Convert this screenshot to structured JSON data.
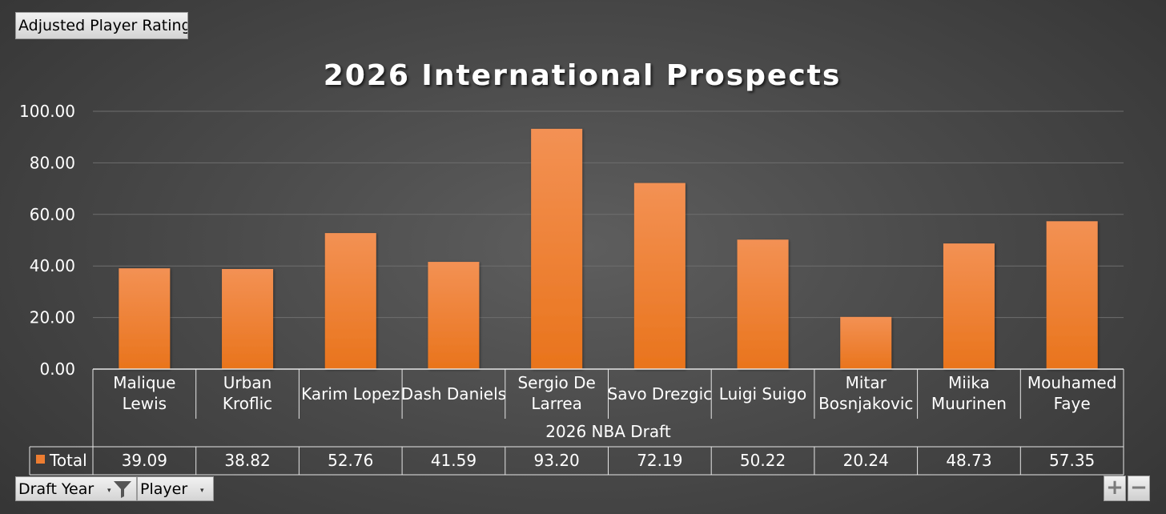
{
  "filter_buttons": {
    "value_field": "Adjusted Player Rating",
    "draft_year": "Draft Year",
    "player": "Player"
  },
  "zoom": {
    "in": "+",
    "out": "−"
  },
  "icons": {
    "filter": "funnel-icon",
    "dropdown": "dropdown-arrow-icon",
    "legend": "legend-swatch-icon"
  },
  "colors": {
    "bar_top": "#f39154",
    "bar_bottom": "#e9741c",
    "legend": "#ed7d31"
  },
  "chart_data": {
    "type": "bar",
    "title": "2026 International Prospects",
    "group_label": "2026 NBA Draft",
    "series": [
      {
        "name": "Total",
        "values": [
          39.09,
          38.82,
          52.76,
          41.59,
          93.2,
          72.19,
          50.22,
          20.24,
          48.73,
          57.35
        ]
      }
    ],
    "categories": [
      [
        "Malique",
        "Lewis"
      ],
      [
        "Urban",
        "Kroflic"
      ],
      [
        "Karim Lopez"
      ],
      [
        "Dash Daniels"
      ],
      [
        "Sergio De",
        "Larrea"
      ],
      [
        "Savo Drezgic"
      ],
      [
        "Luigi Suigo"
      ],
      [
        "Mitar",
        "Bosnjakovic"
      ],
      [
        "Miika",
        "Muurinen"
      ],
      [
        "Mouhamed",
        "Faye"
      ]
    ],
    "value_labels": [
      "39.09",
      "38.82",
      "52.76",
      "41.59",
      "93.20",
      "72.19",
      "50.22",
      "20.24",
      "48.73",
      "57.35"
    ],
    "ylim": [
      0,
      100
    ],
    "yticks": [
      "0.00",
      "20.00",
      "40.00",
      "60.00",
      "80.00",
      "100.00"
    ],
    "grid": true,
    "legend": "bottom-left table"
  }
}
